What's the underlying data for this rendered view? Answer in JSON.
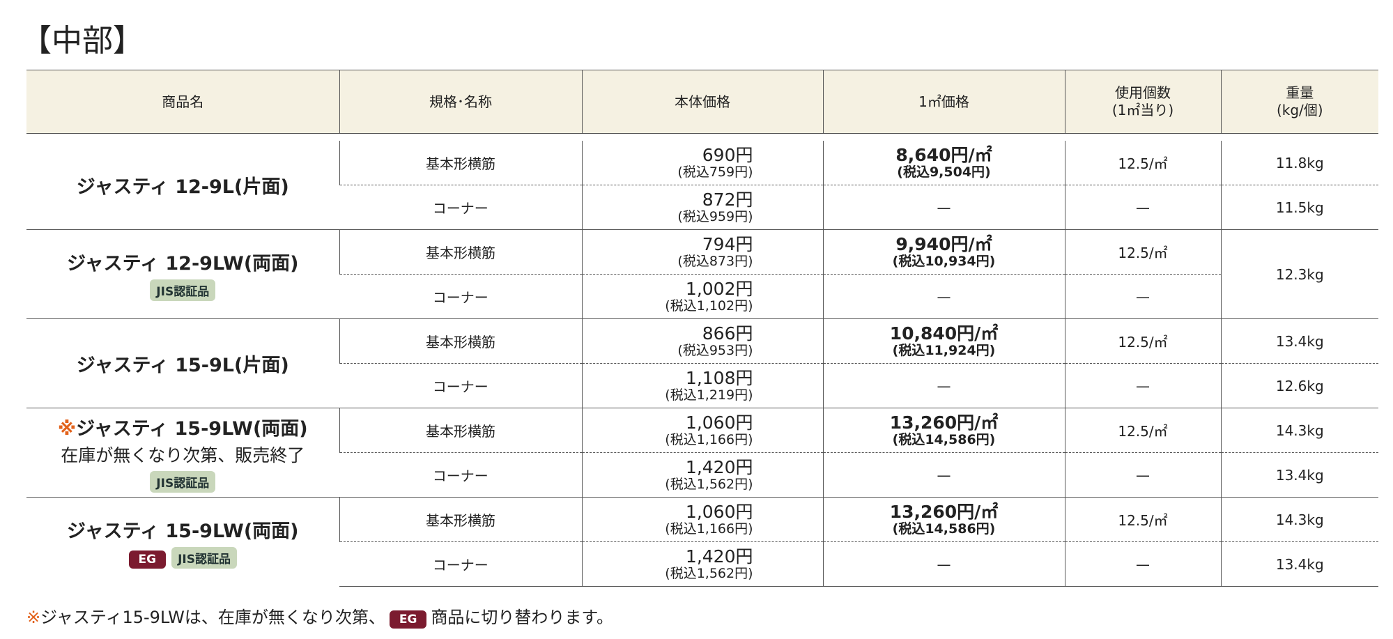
{
  "header": {
    "title": "【中部】"
  },
  "table": {
    "columns": [
      [
        "商品名"
      ],
      [
        "規格･名称"
      ],
      [
        "本体価格"
      ],
      [
        "1㎡価格"
      ],
      [
        "使用個数",
        "(1㎡当り)"
      ],
      [
        "重量",
        "(kg/個)"
      ]
    ],
    "products": [
      {
        "name": "ジャスティ 12-9L(片面)",
        "rows": [
          {
            "spec": "基本形横筋",
            "price": "690円",
            "price_tax": "(税込759円)",
            "sqm_price": "8,640円/㎡",
            "sqm_tax": "(税込9,504円)",
            "count": "12.5/㎡",
            "weight": "11.8kg"
          },
          {
            "spec": "コーナー",
            "price": "872円",
            "price_tax": "(税込959円)",
            "sqm_price": "—",
            "count": "—",
            "weight": "11.5kg"
          }
        ]
      },
      {
        "name": "ジャスティ 12-9LW(両面)",
        "badges": [
          "JIS認証品"
        ],
        "weight": "12.3kg",
        "rows": [
          {
            "spec": "基本形横筋",
            "price": "794円",
            "price_tax": "(税込873円)",
            "sqm_price": "9,940円/㎡",
            "sqm_tax": "(税込10,934円)",
            "count": "12.5/㎡"
          },
          {
            "spec": "コーナー",
            "price": "1,002円",
            "price_tax": "(税込1,102円)",
            "sqm_price": "—",
            "count": "—"
          }
        ]
      },
      {
        "name": "ジャスティ 15-9L(片面)",
        "rows": [
          {
            "spec": "基本形横筋",
            "price": "866円",
            "price_tax": "(税込953円)",
            "sqm_price": "10,840円/㎡",
            "sqm_tax": "(税込11,924円)",
            "count": "12.5/㎡",
            "weight": "13.4kg"
          },
          {
            "spec": "コーナー",
            "price": "1,108円",
            "price_tax": "(税込1,219円)",
            "sqm_price": "—",
            "count": "—",
            "weight": "12.6kg"
          }
        ]
      },
      {
        "mark": "※",
        "name": "ジャスティ 15-9LW(両面)",
        "note": "在庫が無くなり次第、販売終了",
        "badges": [
          "JIS認証品"
        ],
        "rows": [
          {
            "spec": "基本形横筋",
            "price": "1,060円",
            "price_tax": "(税込1,166円)",
            "sqm_price": "13,260円/㎡",
            "sqm_tax": "(税込14,586円)",
            "count": "12.5/㎡",
            "weight": "14.3kg"
          },
          {
            "spec": "コーナー",
            "price": "1,420円",
            "price_tax": "(税込1,562円)",
            "sqm_price": "—",
            "count": "—",
            "weight": "13.4kg"
          }
        ]
      },
      {
        "name": "ジャスティ 15-9LW(両面)",
        "badges": [
          "EG",
          "JIS認証品"
        ],
        "rows": [
          {
            "spec": "基本形横筋",
            "price": "1,060円",
            "price_tax": "(税込1,166円)",
            "sqm_price": "13,260円/㎡",
            "sqm_tax": "(税込14,586円)",
            "count": "12.5/㎡",
            "weight": "14.3kg"
          },
          {
            "spec": "コーナー",
            "price": "1,420円",
            "price_tax": "(税込1,562円)",
            "sqm_price": "—",
            "count": "—",
            "weight": "13.4kg"
          }
        ]
      }
    ]
  },
  "footnote": {
    "mark": "※",
    "text": "ジャスティ15-9LWは、在庫が無くなり次第、",
    "badge": "EG",
    "text_after": "商品に切り替わります。"
  }
}
